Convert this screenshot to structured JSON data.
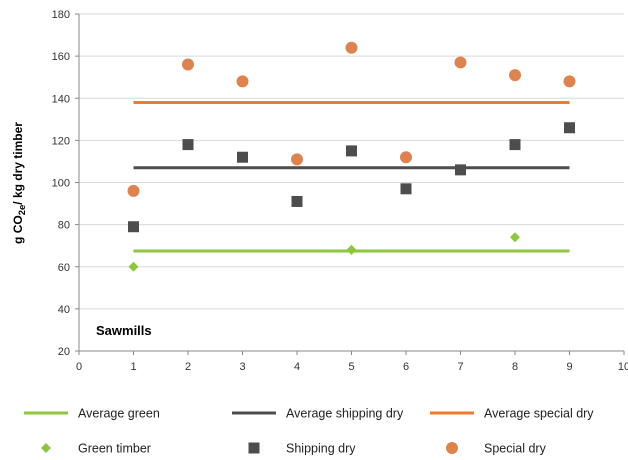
{
  "chart_data": {
    "type": "scatter",
    "title": "",
    "xlabel": "",
    "ylabel_parts": [
      "g CO",
      "2e",
      "/ kg dry timber"
    ],
    "annotation": "Sawmills",
    "xlim": [
      0,
      10
    ],
    "ylim": [
      20,
      180
    ],
    "xticks": [
      0,
      1,
      2,
      3,
      4,
      5,
      6,
      7,
      8,
      9,
      10
    ],
    "yticks": [
      20,
      40,
      60,
      80,
      100,
      120,
      140,
      160,
      180
    ],
    "grid": "horizontal",
    "legend_position": "bottom",
    "lines": [
      {
        "name": "Average green",
        "color": "#8dc63f",
        "x": [
          1,
          9
        ],
        "y": [
          67.5,
          67.5
        ]
      },
      {
        "name": "Average shipping dry",
        "color": "#4d4d4d",
        "x": [
          1,
          9
        ],
        "y": [
          107,
          107
        ]
      },
      {
        "name": "Average special dry",
        "color": "#ec7c30",
        "x": [
          1,
          9
        ],
        "y": [
          138,
          138
        ]
      }
    ],
    "series": [
      {
        "name": "Green timber",
        "marker": "diamond",
        "color": "#8dc63f",
        "x": [
          1,
          5,
          8
        ],
        "y": [
          60,
          68,
          74
        ]
      },
      {
        "name": "Shipping dry",
        "marker": "square",
        "color": "#4d4d4d",
        "x": [
          1,
          2,
          3,
          4,
          5,
          6,
          7,
          8,
          9
        ],
        "y": [
          79,
          118,
          112,
          91,
          115,
          97,
          106,
          118,
          126
        ]
      },
      {
        "name": "Special dry",
        "marker": "circle",
        "color": "#dd8350",
        "x": [
          1,
          2,
          3,
          4,
          5,
          6,
          7,
          8,
          9
        ],
        "y": [
          96,
          156,
          148,
          111,
          164,
          112,
          157,
          151,
          148
        ]
      }
    ]
  }
}
